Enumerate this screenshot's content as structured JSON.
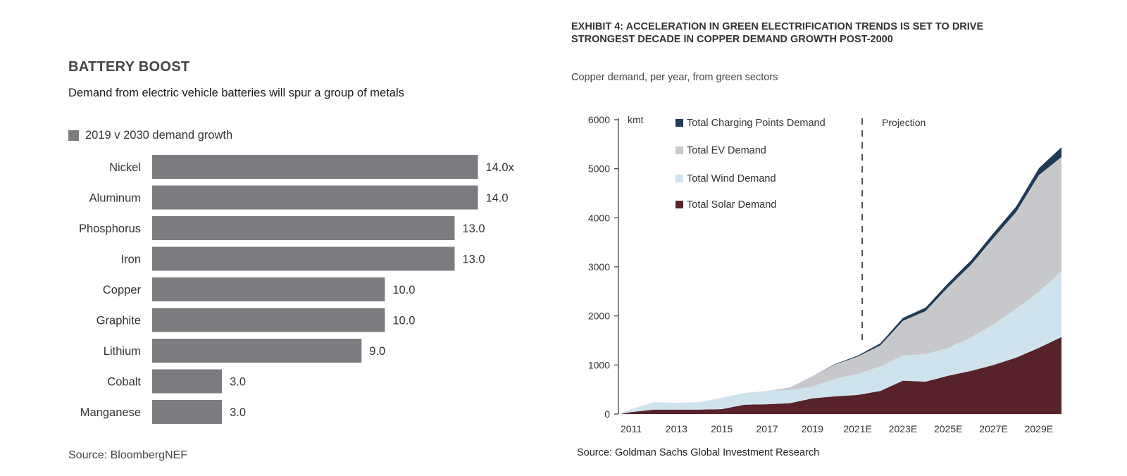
{
  "left": {
    "title": "BATTERY BOOST",
    "subtitle": "Demand from electric vehicle batteries will spur a group of metals",
    "legend_label": "2019 v 2030 demand growth",
    "source": "Source: BloombergNEF"
  },
  "right": {
    "title_line1": "EXHIBIT 4: ACCELERATION IN GREEN ELECTRIFICATION TRENDS IS SET TO DRIVE",
    "title_line2": "STRONGEST DECADE IN COPPER DEMAND GROWTH POST-2000",
    "subtitle": "Copper demand, per year, from green sectors",
    "source": "Source: Goldman Sachs Global Investment Research",
    "unit_label": "kmt",
    "projection_label": "Projection"
  },
  "chart_data": [
    {
      "type": "bar",
      "orientation": "horizontal",
      "title": "BATTERY BOOST",
      "subtitle": "Demand from electric vehicle batteries will spur a group of metals",
      "legend": "2019 v 2030 demand growth",
      "bar_color": "#7b7b80",
      "categories": [
        "Nickel",
        "Aluminum",
        "Phosphorus",
        "Iron",
        "Copper",
        "Graphite",
        "Lithium",
        "Cobalt",
        "Manganese"
      ],
      "values": [
        14.0,
        14.0,
        13.0,
        13.0,
        10.0,
        10.0,
        9.0,
        3.0,
        3.0
      ],
      "value_labels": [
        "14.0x",
        "14.0",
        "13.0",
        "13.0",
        "10.0",
        "10.0",
        "9.0",
        "3.0",
        "3.0"
      ],
      "xlim": [
        0,
        14.5
      ],
      "grid": false
    },
    {
      "type": "area",
      "stacked": true,
      "title": "EXHIBIT 4: ACCELERATION IN GREEN ELECTRIFICATION TRENDS IS SET TO DRIVE STRONGEST DECADE IN COPPER DEMAND GROWTH POST-2000",
      "subtitle": "Copper demand, per year, from green sectors",
      "ylabel": "kmt",
      "ylim": [
        0,
        6000
      ],
      "yticks": [
        0,
        1000,
        2000,
        3000,
        4000,
        5000,
        6000
      ],
      "x": [
        2010.5,
        2011,
        2012,
        2013,
        2014,
        2015,
        2016,
        2017,
        2018,
        2019,
        2020,
        2021,
        2022,
        2023,
        2024,
        2025,
        2026,
        2027,
        2028,
        2029,
        2030
      ],
      "xlim": [
        2010.5,
        2030
      ],
      "xtick_values": [
        2011,
        2013,
        2015,
        2017,
        2019,
        2021,
        2023,
        2025,
        2027,
        2029
      ],
      "xtick_labels": [
        "2011",
        "2013",
        "2015",
        "2017",
        "2019",
        "2021E",
        "2023E",
        "2025E",
        "2027E",
        "2029E"
      ],
      "projection_start": 2021.2,
      "projection_label": "Projection",
      "legend_position": "top-left",
      "grid": false,
      "series": [
        {
          "name": "Total Solar Demand",
          "color": "#58222b",
          "values": [
            0,
            40,
            90,
            90,
            90,
            100,
            190,
            200,
            220,
            320,
            360,
            390,
            470,
            680,
            660,
            780,
            880,
            1000,
            1150,
            1350,
            1570
          ]
        },
        {
          "name": "Total Wind Demand",
          "color": "#cfe3ee",
          "values": [
            0,
            60,
            150,
            140,
            150,
            230,
            240,
            270,
            270,
            240,
            360,
            430,
            500,
            520,
            560,
            570,
            680,
            830,
            1000,
            1140,
            1340
          ]
        },
        {
          "name": "Total EV Demand",
          "color": "#c7c8cc",
          "values": [
            0,
            0,
            0,
            0,
            0,
            0,
            0,
            0,
            50,
            210,
            290,
            350,
            430,
            700,
            880,
            1240,
            1480,
            1760,
            1970,
            2380,
            2330
          ]
        },
        {
          "name": "Total Charging Points Demand",
          "color": "#1f3a55",
          "values": [
            0,
            0,
            0,
            0,
            0,
            0,
            0,
            0,
            0,
            0,
            10,
            20,
            40,
            60,
            70,
            80,
            90,
            100,
            110,
            140,
            200
          ]
        }
      ]
    }
  ]
}
